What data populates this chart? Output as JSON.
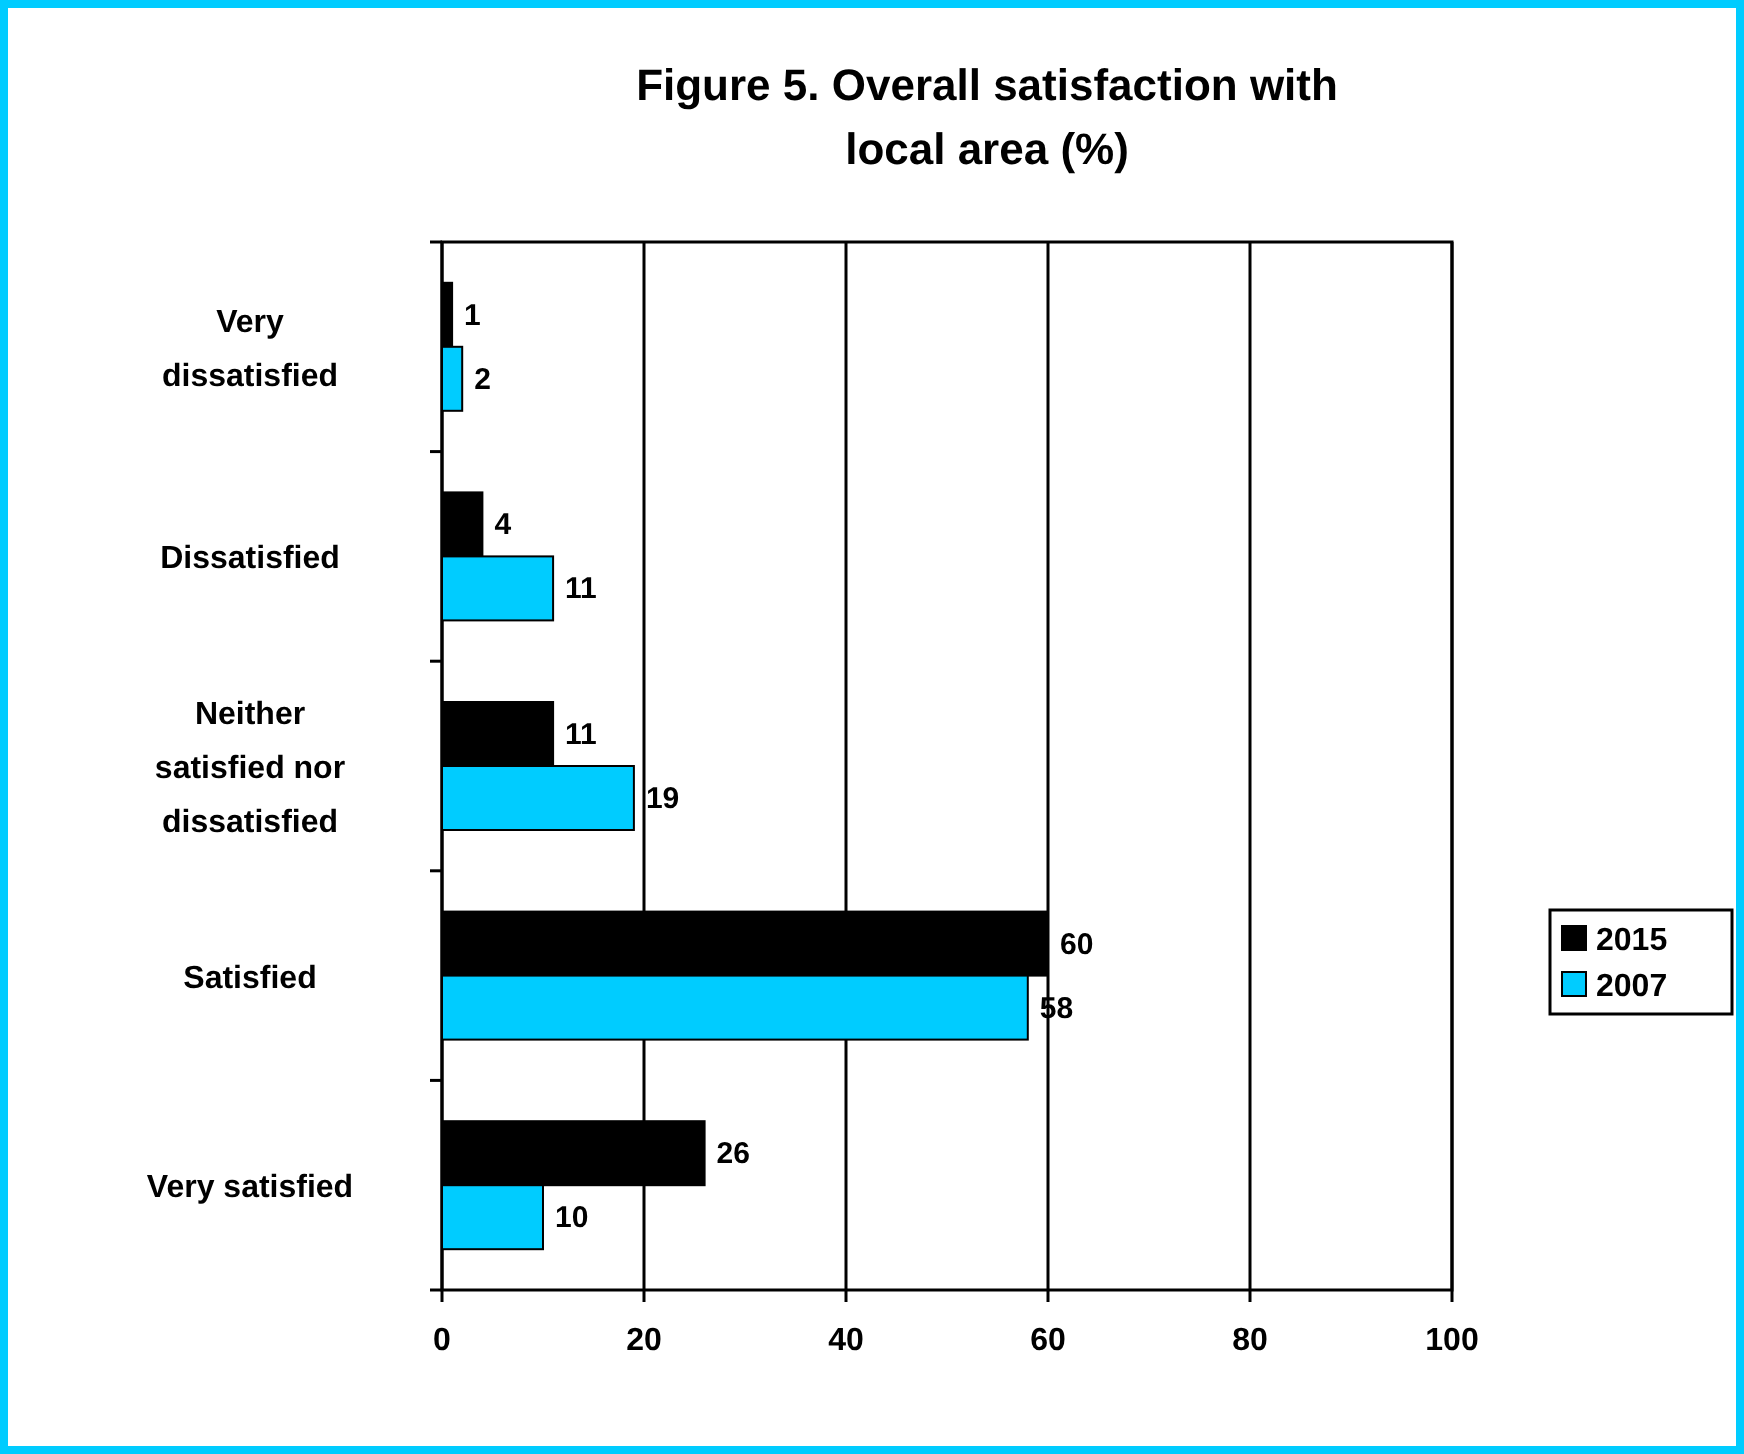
{
  "chart_data": {
    "type": "bar",
    "orientation": "horizontal",
    "title": "Figure 5. Overall satisfaction with local area (%)",
    "categories": [
      "Very dissatisfied",
      "Dissatisfied",
      "Neither satisfied nor dissatisfied",
      "Satisfied",
      "Very satisfied"
    ],
    "series": [
      {
        "name": "2015",
        "color": "#000000",
        "values": [
          1,
          4,
          11,
          60,
          26
        ]
      },
      {
        "name": "2007",
        "color": "#00ccff",
        "values": [
          2,
          11,
          19,
          58,
          10
        ]
      }
    ],
    "xlim": [
      0,
      100
    ],
    "xticks": [
      0,
      20,
      40,
      60,
      80,
      100
    ],
    "grid": "x",
    "legend": "right",
    "data_labels": true
  }
}
